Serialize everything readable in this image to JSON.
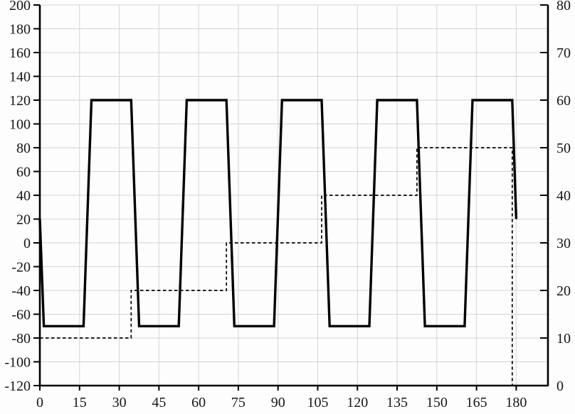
{
  "chart_data": {
    "type": "line",
    "title": "",
    "xlabel": "",
    "ylabel_left": "",
    "ylabel_right": "",
    "legend": null,
    "grid": {
      "show": true,
      "color": "#d4d4d4"
    },
    "axis_color": "#000000",
    "background_color": "#fdfdfd",
    "x_axis": {
      "min": 0,
      "max": 192,
      "tick_step": 15,
      "ticks": [
        0,
        15,
        30,
        45,
        60,
        75,
        90,
        105,
        120,
        135,
        150,
        165,
        180
      ]
    },
    "y_left_axis": {
      "min": -120,
      "max": 200,
      "tick_step": 20,
      "ticks": [
        200,
        180,
        160,
        140,
        120,
        100,
        80,
        60,
        40,
        20,
        0,
        -20,
        -40,
        -60,
        -80,
        -100,
        -120
      ]
    },
    "y_right_axis": {
      "min": 0,
      "max": 80,
      "tick_step": 10,
      "ticks": [
        80,
        70,
        60,
        50,
        40,
        30,
        20,
        10,
        0
      ]
    },
    "series": [
      {
        "name": "solid-trapezoid-wave",
        "axis": "left",
        "line_style": "solid",
        "color": "#000000",
        "width": 3.4,
        "points": [
          [
            0,
            20
          ],
          [
            1.5,
            -70
          ],
          [
            16.5,
            -70
          ],
          [
            19.5,
            120
          ],
          [
            34.5,
            120
          ],
          [
            37.5,
            -70
          ],
          [
            52.5,
            -70
          ],
          [
            55.5,
            120
          ],
          [
            70.5,
            120
          ],
          [
            73.5,
            -70
          ],
          [
            88.5,
            -70
          ],
          [
            91.5,
            120
          ],
          [
            106.5,
            120
          ],
          [
            109.5,
            -70
          ],
          [
            124.5,
            -70
          ],
          [
            127.5,
            120
          ],
          [
            142.5,
            120
          ],
          [
            145.5,
            -70
          ],
          [
            160.5,
            -70
          ],
          [
            163.5,
            120
          ],
          [
            178.5,
            120
          ],
          [
            180,
            20
          ]
        ]
      },
      {
        "name": "dashed-step",
        "axis": "right",
        "line_style": "dashed",
        "color": "#000000",
        "width": 1.7,
        "points": [
          [
            0,
            10
          ],
          [
            34.5,
            10
          ],
          [
            34.5,
            20
          ],
          [
            70.5,
            20
          ],
          [
            70.5,
            30
          ],
          [
            106.5,
            30
          ],
          [
            106.5,
            40
          ],
          [
            142.5,
            40
          ],
          [
            142.5,
            50
          ],
          [
            178.5,
            50
          ],
          [
            178.5,
            0
          ]
        ]
      }
    ]
  }
}
